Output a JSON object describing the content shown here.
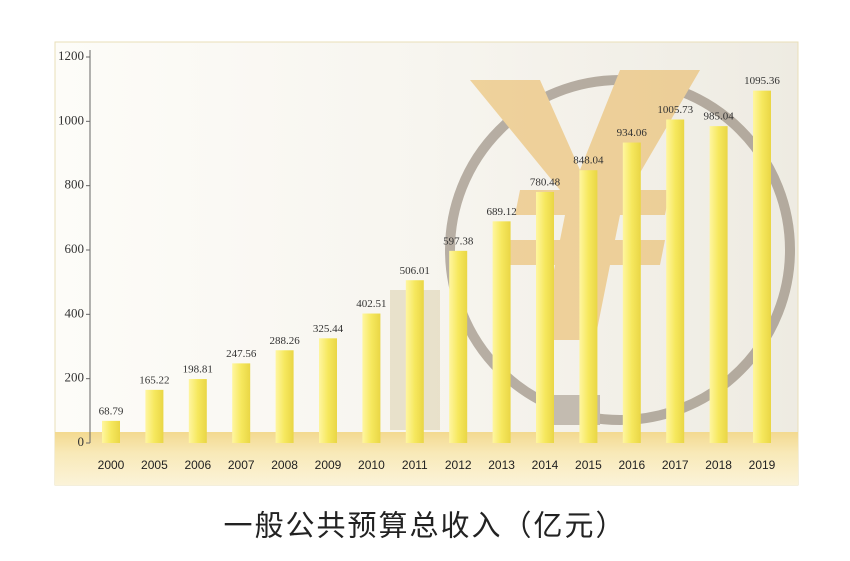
{
  "chart_data": {
    "type": "bar",
    "title": "一般公共预算总收入（亿元）",
    "categories": [
      "2000",
      "2005",
      "2006",
      "2007",
      "2008",
      "2009",
      "2010",
      "2011",
      "2012",
      "2013",
      "2014",
      "2015",
      "2016",
      "2017",
      "2018",
      "2019"
    ],
    "values": [
      68.79,
      165.22,
      198.81,
      247.56,
      288.26,
      325.44,
      402.51,
      506.01,
      597.38,
      689.12,
      780.48,
      848.04,
      934.06,
      1005.73,
      985.04,
      1095.36
    ],
    "color": "#f6e85e",
    "ylim": [
      0,
      1200
    ],
    "yticks": [
      0,
      200,
      400,
      600,
      800,
      1000,
      1200
    ]
  }
}
